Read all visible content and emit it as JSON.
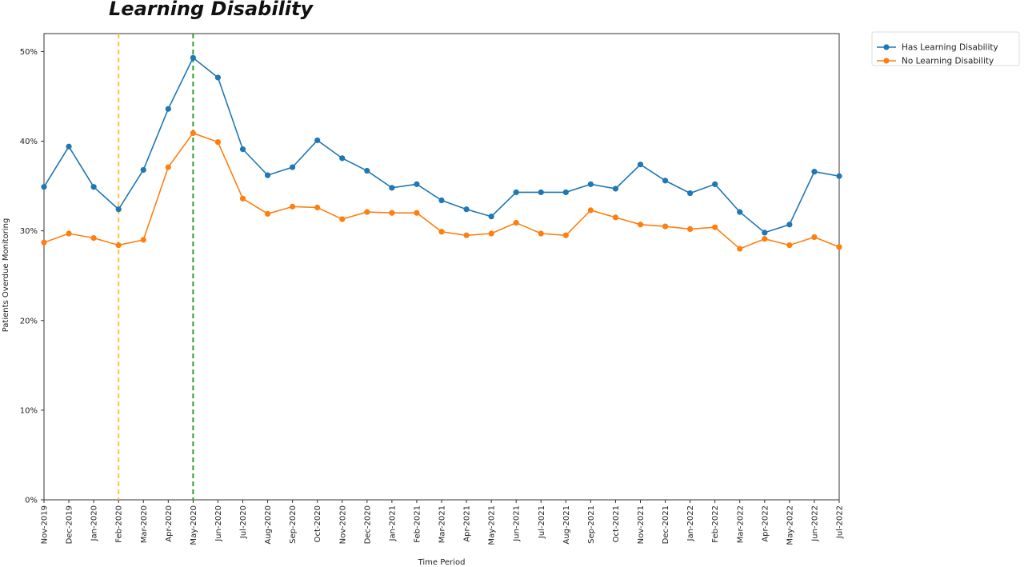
{
  "chart_data": {
    "type": "line",
    "title": "Learning Disability",
    "xlabel": "Time Period",
    "ylabel": "Patients Overdue Monitoring",
    "ylim": [
      0,
      0.52
    ],
    "yticks": [
      0,
      0.1,
      0.2,
      0.3,
      0.4,
      0.5
    ],
    "ytick_labels": [
      "0%",
      "10%",
      "20%",
      "30%",
      "40%",
      "50%"
    ],
    "legend_position": "outside-top-right",
    "grid": false,
    "categories": [
      "Nov-2019",
      "Dec-2019",
      "Jan-2020",
      "Feb-2020",
      "Mar-2020",
      "Apr-2020",
      "May-2020",
      "Jun-2020",
      "Jul-2020",
      "Aug-2020",
      "Sep-2020",
      "Oct-2020",
      "Nov-2020",
      "Dec-2020",
      "Jan-2021",
      "Feb-2021",
      "Mar-2021",
      "Apr-2021",
      "May-2021",
      "Jun-2021",
      "Jul-2021",
      "Aug-2021",
      "Sep-2021",
      "Oct-2021",
      "Nov-2021",
      "Dec-2021",
      "Jan-2022",
      "Feb-2022",
      "Mar-2022",
      "Apr-2022",
      "May-2022",
      "Jun-2022",
      "Jul-2022"
    ],
    "series": [
      {
        "name": "Has Learning Disability",
        "color": "#1f77b4",
        "values": [
          0.349,
          0.394,
          0.349,
          0.324,
          0.368,
          0.436,
          0.493,
          0.471,
          0.391,
          0.362,
          0.371,
          0.401,
          0.381,
          0.367,
          0.348,
          0.352,
          0.334,
          0.324,
          0.316,
          0.343,
          0.343,
          0.343,
          0.352,
          0.347,
          0.374,
          0.356,
          0.342,
          0.352,
          0.321,
          0.298,
          0.307,
          0.366,
          0.361
        ]
      },
      {
        "name": "No Learning Disability",
        "color": "#ff7f0e",
        "values": [
          0.287,
          0.297,
          0.292,
          0.284,
          0.29,
          0.371,
          0.409,
          0.399,
          0.336,
          0.319,
          0.327,
          0.326,
          0.313,
          0.321,
          0.32,
          0.32,
          0.299,
          0.295,
          0.297,
          0.309,
          0.297,
          0.295,
          0.323,
          0.315,
          0.307,
          0.305,
          0.302,
          0.304,
          0.28,
          0.291,
          0.284,
          0.293,
          0.282
        ]
      }
    ],
    "vertical_lines": [
      {
        "category": "Feb-2020",
        "color": "#ffbf3f",
        "style": "dashed"
      },
      {
        "category": "May-2020",
        "color": "#2ca02c",
        "style": "dashed"
      }
    ]
  }
}
